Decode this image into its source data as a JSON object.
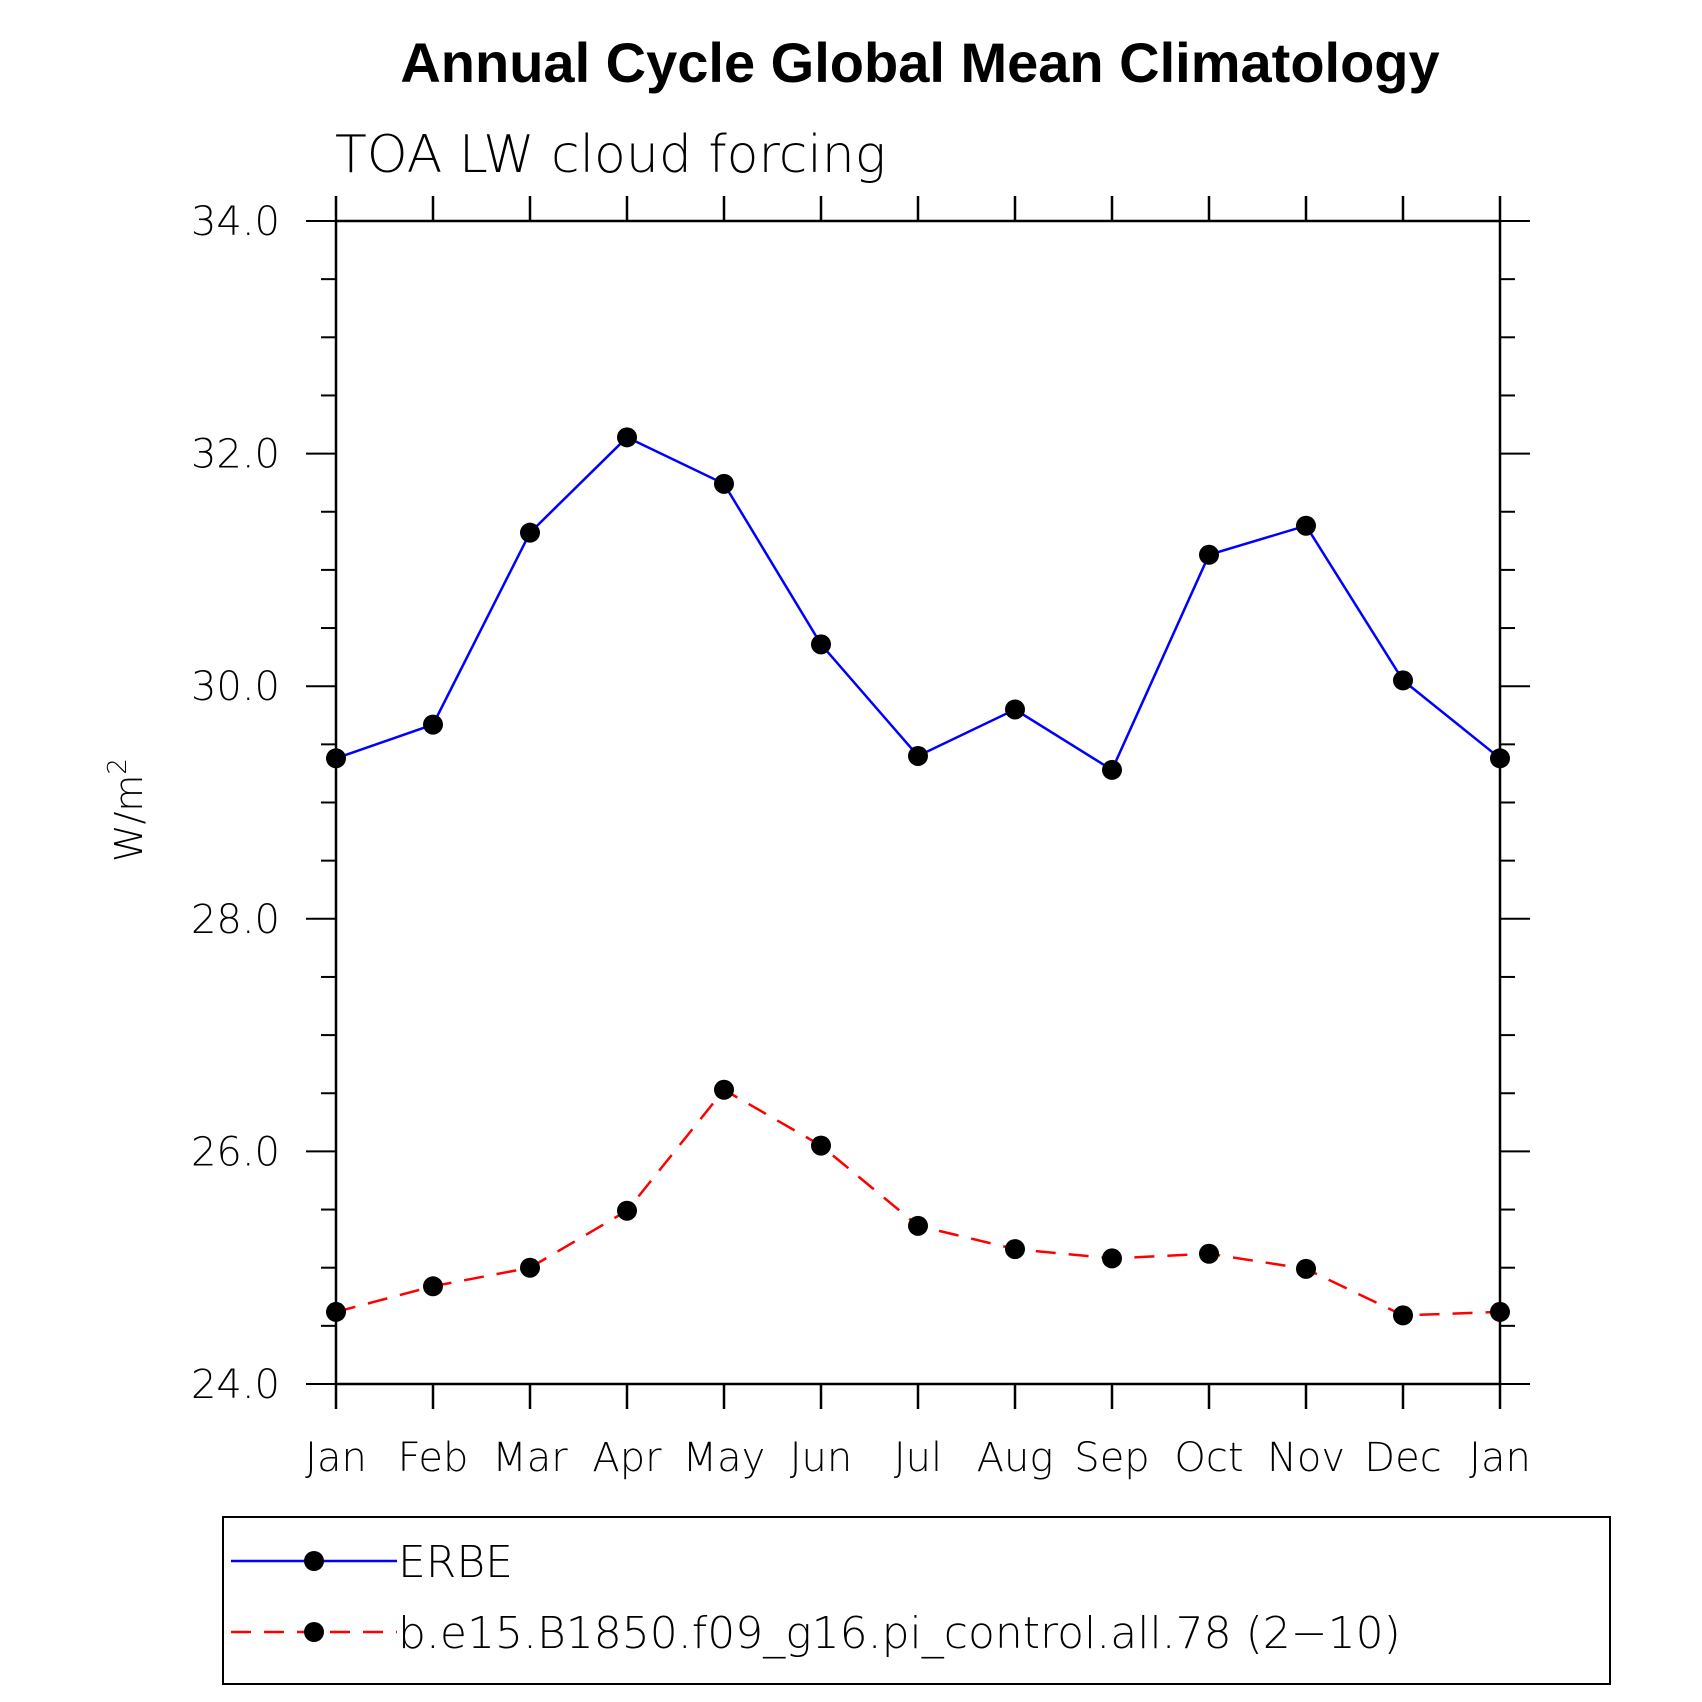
{
  "chart_data": {
    "type": "line",
    "title": "Annual Cycle Global Mean Climatology",
    "subtitle": "TOA LW cloud forcing",
    "ylabel": "W/m",
    "ylabel_superscript": "2",
    "xlabel": "",
    "categories": [
      "Jan",
      "Feb",
      "Mar",
      "Apr",
      "May",
      "Jun",
      "Jul",
      "Aug",
      "Sep",
      "Oct",
      "Nov",
      "Dec",
      "Jan"
    ],
    "ylim": [
      24.0,
      34.0
    ],
    "yticks": [
      "24.0",
      "26.0",
      "28.0",
      "30.0",
      "32.0",
      "34.0"
    ],
    "grid": false,
    "legend_position": "bottom",
    "series": [
      {
        "name": "ERBE",
        "color": "#0000ff",
        "line_style": "solid",
        "marker": "filled-circle",
        "values": [
          29.38,
          29.67,
          31.32,
          32.14,
          31.74,
          30.36,
          29.4,
          29.8,
          29.28,
          31.13,
          31.38,
          30.05,
          29.38
        ]
      },
      {
        "name": "b.e15.B1850.f09_g16.pi_control.all.78 (2−10)",
        "color": "#ff0000",
        "line_style": "dashed",
        "marker": "filled-circle",
        "values": [
          24.62,
          24.84,
          25.0,
          25.49,
          26.53,
          26.05,
          25.36,
          25.16,
          25.08,
          25.12,
          24.99,
          24.59,
          24.62
        ]
      }
    ]
  }
}
